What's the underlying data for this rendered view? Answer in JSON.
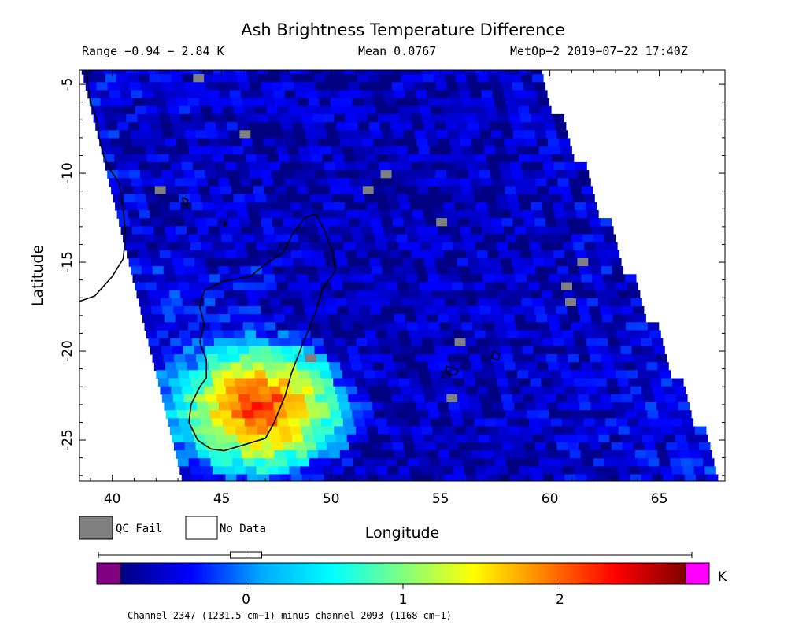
{
  "header": {
    "title": "Ash Brightness Temperature Difference",
    "range": "Range −0.94 − 2.84 K",
    "mean": "Mean 0.0767",
    "satellite": "MetOp−2 2019−07−22 17:40Z"
  },
  "legend": {
    "qc_fail": "QC Fail",
    "no_data": "No Data",
    "qc_fail_color": "#808080",
    "no_data_color": "#ffffff"
  },
  "colorbar": {
    "unit": "K",
    "ticks": [
      "0",
      "1",
      "2"
    ],
    "tick_values": [
      0,
      1,
      2
    ],
    "vmin": -0.5,
    "vmax": 1.4,
    "range": [
      -0.8,
      2.8
    ],
    "under_color": "#800080",
    "over_color": "#ff00ff",
    "colormap": [
      "#000080",
      "#0000ff",
      "#00aaff",
      "#00ffff",
      "#80ff80",
      "#ffff00",
      "#ff8000",
      "#ff0000",
      "#800000"
    ],
    "boxplot": {
      "min": -0.94,
      "q1": -0.1,
      "median": 0.0,
      "q3": 0.1,
      "max": 2.84
    },
    "note": "Channel 2347 (1231.5 cm−1) minus channel 2093 (1168 cm−1)"
  },
  "chart_data": {
    "type": "heatmap",
    "title": "Ash Brightness Temperature Difference",
    "xlabel": "Longitude",
    "ylabel": "Latitude",
    "xlim": [
      38.5,
      68
    ],
    "ylim": [
      -27.3,
      -4.2
    ],
    "xticks": [
      40,
      45,
      50,
      55,
      60,
      65
    ],
    "yticks": [
      -5,
      -10,
      -15,
      -20,
      -25
    ],
    "xtick_labels": [
      "40",
      "45",
      "50",
      "55",
      "60",
      "65"
    ],
    "ytick_labels": [
      "-5",
      "-10",
      "-15",
      "-20",
      "-25"
    ],
    "units": "K",
    "value_range": [
      -0.94,
      2.84
    ],
    "mean": 0.0767,
    "swath": {
      "left_edge": [
        [
          38.6,
          -4.2
        ],
        [
          43.2,
          -27.3
        ]
      ],
      "right_edge": [
        [
          59.2,
          -4.2
        ],
        [
          67.7,
          -27.3
        ]
      ]
    },
    "ash_plume": {
      "center_lon": 46.5,
      "center_lat": -23.2,
      "peak_value": 2.84
    },
    "coastline": [
      [
        [
          38.5,
          -17.2
        ],
        [
          39.2,
          -16.9
        ],
        [
          40.0,
          -15.8
        ],
        [
          40.5,
          -14.8
        ],
        [
          40.6,
          -13.5
        ],
        [
          40.5,
          -12.0
        ],
        [
          40.3,
          -10.5
        ],
        [
          39.9,
          -9.8
        ],
        [
          39.6,
          -9.0
        ],
        [
          39.4,
          -8.0
        ],
        [
          39.3,
          -7.0
        ],
        [
          39.0,
          -6.0
        ],
        [
          38.8,
          -4.2
        ]
      ],
      [
        [
          44.3,
          -21.5
        ],
        [
          44.0,
          -22.0
        ],
        [
          43.6,
          -23.0
        ],
        [
          43.5,
          -24.0
        ],
        [
          43.9,
          -25.0
        ],
        [
          44.5,
          -25.5
        ],
        [
          45.1,
          -25.6
        ],
        [
          46.2,
          -25.2
        ],
        [
          47.0,
          -24.9
        ],
        [
          47.4,
          -24.0
        ],
        [
          47.9,
          -22.5
        ],
        [
          48.2,
          -21.2
        ],
        [
          48.7,
          -19.6
        ],
        [
          49.3,
          -17.8
        ],
        [
          49.6,
          -16.5
        ],
        [
          50.2,
          -15.5
        ],
        [
          50.1,
          -14.5
        ],
        [
          49.7,
          -13.2
        ],
        [
          49.3,
          -12.3
        ],
        [
          48.8,
          -12.5
        ],
        [
          48.2,
          -13.5
        ],
        [
          47.8,
          -14.5
        ],
        [
          47.1,
          -15.0
        ],
        [
          46.3,
          -15.8
        ],
        [
          45.0,
          -16.1
        ],
        [
          44.2,
          -16.6
        ],
        [
          44.0,
          -17.5
        ],
        [
          44.2,
          -18.5
        ],
        [
          44.0,
          -19.5
        ],
        [
          44.3,
          -20.5
        ],
        [
          44.3,
          -21.5
        ]
      ],
      [
        [
          55.25,
          -20.85
        ],
        [
          55.5,
          -20.9
        ],
        [
          55.8,
          -21.1
        ],
        [
          55.7,
          -21.35
        ],
        [
          55.4,
          -21.35
        ],
        [
          55.25,
          -21.1
        ],
        [
          55.25,
          -20.85
        ]
      ],
      [
        [
          57.4,
          -20.0
        ],
        [
          57.7,
          -20.2
        ],
        [
          57.65,
          -20.5
        ],
        [
          57.35,
          -20.4
        ],
        [
          57.4,
          -20.0
        ]
      ],
      [
        [
          43.2,
          -11.35
        ],
        [
          43.45,
          -11.5
        ],
        [
          43.4,
          -11.85
        ],
        [
          43.25,
          -11.7
        ],
        [
          43.2,
          -11.35
        ]
      ],
      [
        [
          45.15,
          -12.7
        ],
        [
          45.2,
          -12.9
        ],
        [
          45.1,
          -12.95
        ],
        [
          45.15,
          -12.7
        ]
      ]
    ]
  }
}
